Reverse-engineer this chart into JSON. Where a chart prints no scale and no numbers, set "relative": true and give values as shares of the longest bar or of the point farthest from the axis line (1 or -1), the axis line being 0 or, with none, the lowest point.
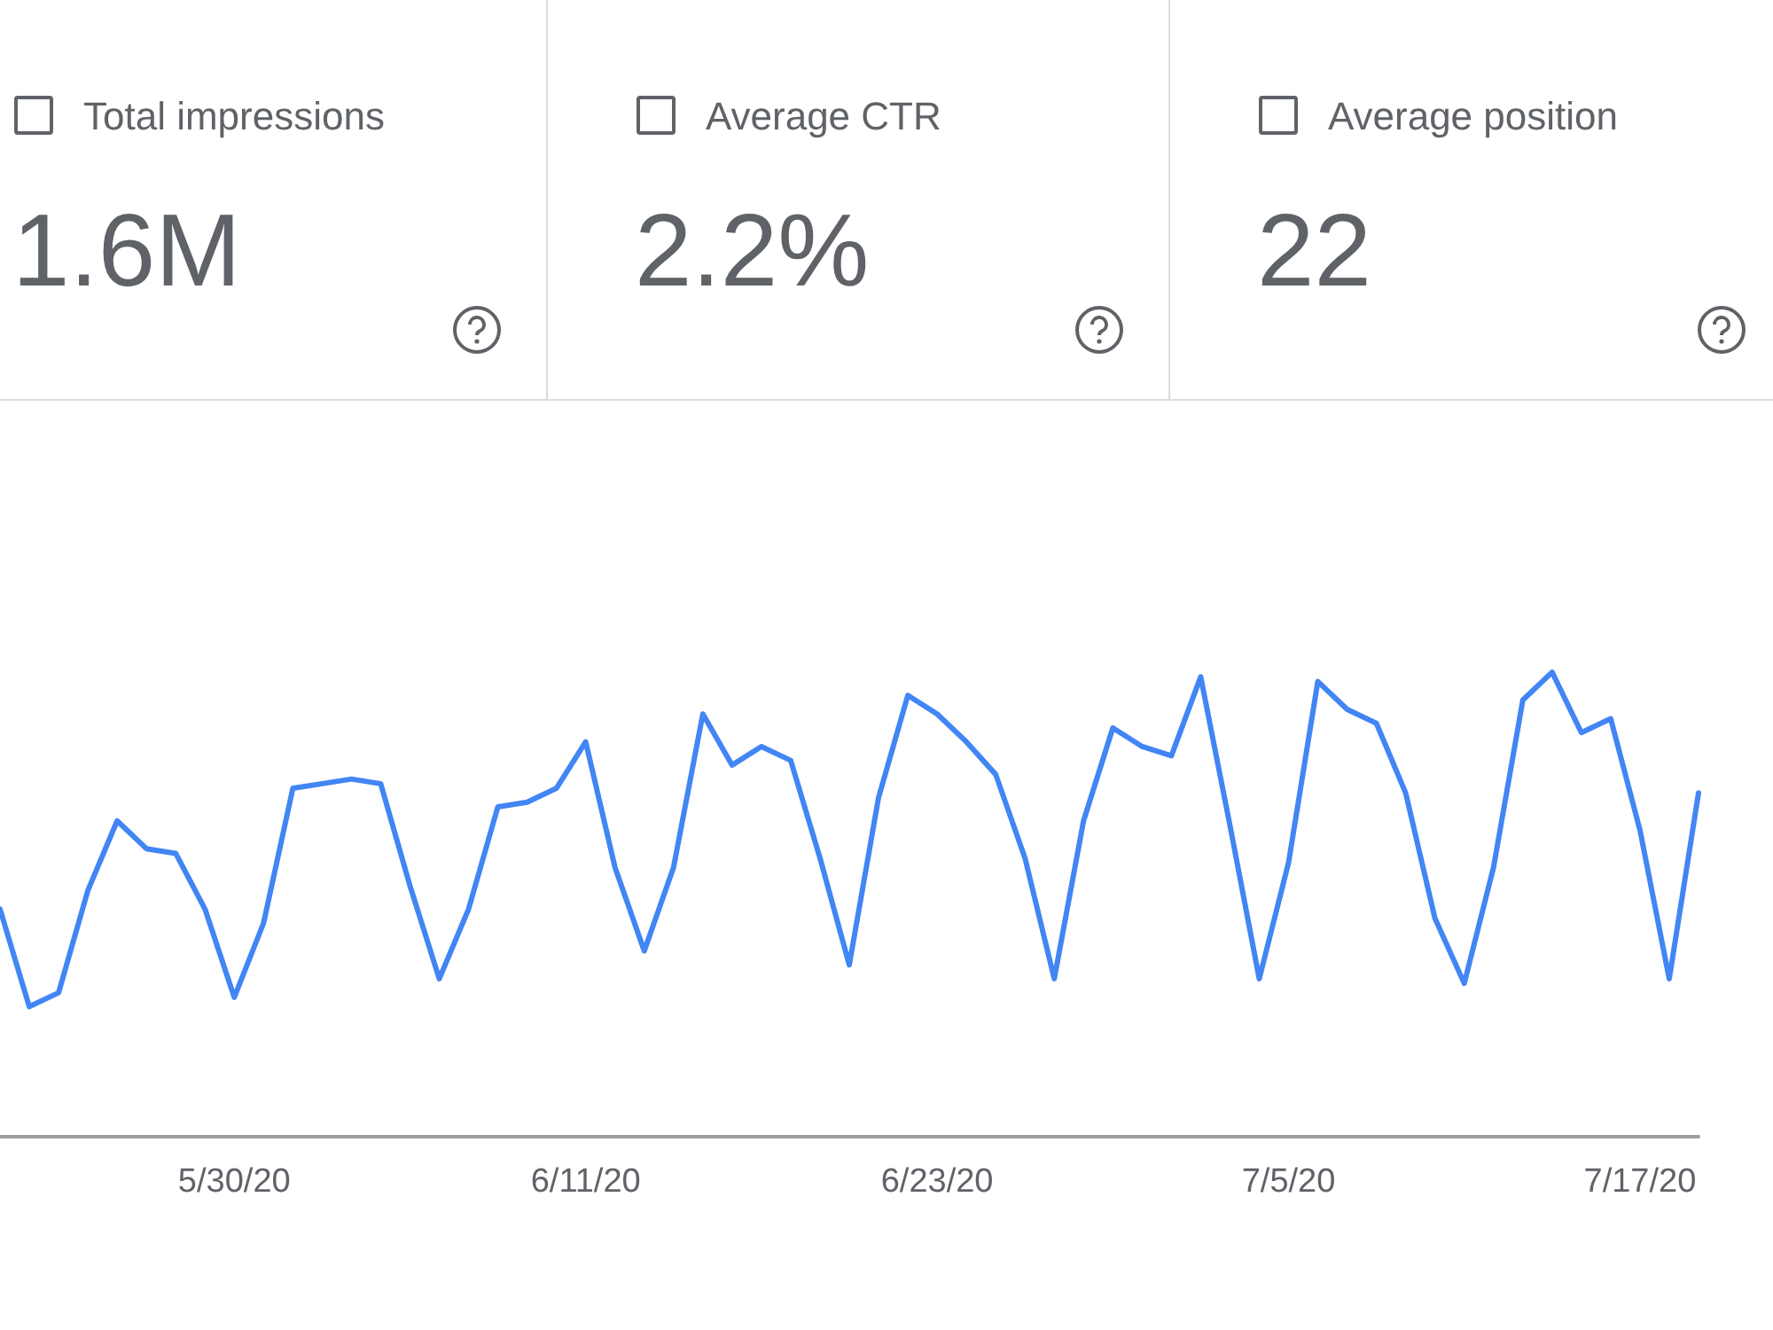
{
  "chart_data": [
    {
      "type": "other",
      "annotations": [
        "Total impressions",
        "1.6M",
        "Average CTR",
        "2.2%",
        "Average position",
        "22"
      ]
    },
    {
      "type": "line",
      "relative": true,
      "color": "#4285f4",
      "marker": "none",
      "line_style": "solid",
      "x": [
        "2020-05-22",
        "2020-05-23",
        "2020-05-24",
        "2020-05-25",
        "2020-05-26",
        "2020-05-27",
        "2020-05-28",
        "2020-05-29",
        "2020-05-30",
        "2020-05-31",
        "2020-06-01",
        "2020-06-02",
        "2020-06-03",
        "2020-06-04",
        "2020-06-05",
        "2020-06-06",
        "2020-06-07",
        "2020-06-08",
        "2020-06-09",
        "2020-06-10",
        "2020-06-11",
        "2020-06-12",
        "2020-06-13",
        "2020-06-14",
        "2020-06-15",
        "2020-06-16",
        "2020-06-17",
        "2020-06-18",
        "2020-06-19",
        "2020-06-20",
        "2020-06-21",
        "2020-06-22",
        "2020-06-23",
        "2020-06-24",
        "2020-06-25",
        "2020-06-26",
        "2020-06-27",
        "2020-06-28",
        "2020-06-29",
        "2020-06-30",
        "2020-07-01",
        "2020-07-02",
        "2020-07-03",
        "2020-07-04",
        "2020-07-05",
        "2020-07-06",
        "2020-07-07",
        "2020-07-08",
        "2020-07-09",
        "2020-07-10",
        "2020-07-11",
        "2020-07-12",
        "2020-07-13",
        "2020-07-14",
        "2020-07-15",
        "2020-07-16",
        "2020-07-17",
        "2020-07-18",
        "2020-07-19"
      ],
      "values": [
        0.49,
        0.28,
        0.31,
        0.53,
        0.68,
        0.62,
        0.61,
        0.49,
        0.3,
        0.46,
        0.75,
        0.76,
        0.77,
        0.76,
        0.54,
        0.34,
        0.49,
        0.71,
        0.72,
        0.75,
        0.85,
        0.58,
        0.4,
        0.58,
        0.91,
        0.8,
        0.84,
        0.81,
        0.6,
        0.37,
        0.73,
        0.95,
        0.91,
        0.85,
        0.78,
        0.6,
        0.34,
        0.68,
        0.88,
        0.84,
        0.82,
        0.99,
        0.67,
        0.34,
        0.59,
        0.98,
        0.92,
        0.89,
        0.74,
        0.47,
        0.33,
        0.58,
        0.94,
        1,
        0.87,
        0.9,
        0.66,
        0.34,
        0.74
      ],
      "xlim": [
        "2020-05-22",
        "2020-07-19"
      ],
      "xticks": [
        {
          "value": "2020-05-30",
          "label": "5/30/20"
        },
        {
          "value": "2020-06-11",
          "label": "6/11/20"
        },
        {
          "value": "2020-06-23",
          "label": "6/23/20"
        },
        {
          "value": "2020-07-05",
          "label": "7/5/20"
        },
        {
          "value": "2020-07-17",
          "label": "7/17/20"
        }
      ]
    }
  ]
}
